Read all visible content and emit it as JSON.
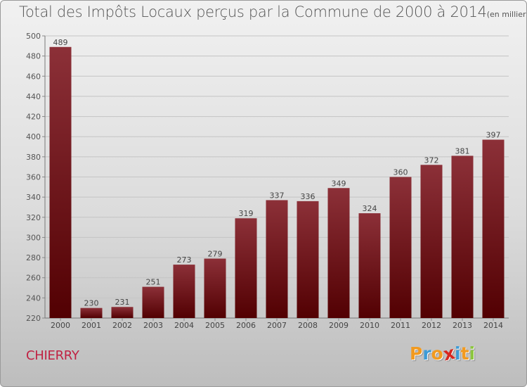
{
  "title": "Total des Impôts Locaux perçus par la Commune de 2000 à 2014",
  "title_unit": "(en milliers d'€)",
  "commune": "CHIERRY",
  "logo": {
    "text": "Proxiti",
    "letters": [
      "P",
      "r",
      "o",
      "x",
      "i",
      "t",
      "i"
    ],
    "colors": [
      "#f29a1f",
      "#3d9bd6",
      "#f29a1f",
      "#d7261e",
      "#3d9bd6",
      "#f29a1f",
      "#8dc63f"
    ]
  },
  "colors": {
    "bar_top": "#8c3038",
    "bar_bottom": "#520002",
    "accent": "#c02243"
  },
  "chart_data": {
    "type": "bar",
    "title": "Total des Impôts Locaux perçus par la Commune de 2000 à 2014",
    "subtitle": "(en milliers d'€)",
    "categories": [
      "2000",
      "2001",
      "2002",
      "2003",
      "2004",
      "2005",
      "2006",
      "2007",
      "2008",
      "2009",
      "2010",
      "2011",
      "2012",
      "2013",
      "2014"
    ],
    "values": [
      489,
      230,
      231,
      251,
      273,
      279,
      319,
      337,
      336,
      349,
      324,
      360,
      372,
      381,
      397
    ],
    "ylim": [
      220,
      500
    ],
    "yticks": [
      220,
      240,
      260,
      280,
      300,
      320,
      340,
      360,
      380,
      400,
      420,
      440,
      460,
      480,
      500
    ],
    "grid": true,
    "data_labels": true
  }
}
